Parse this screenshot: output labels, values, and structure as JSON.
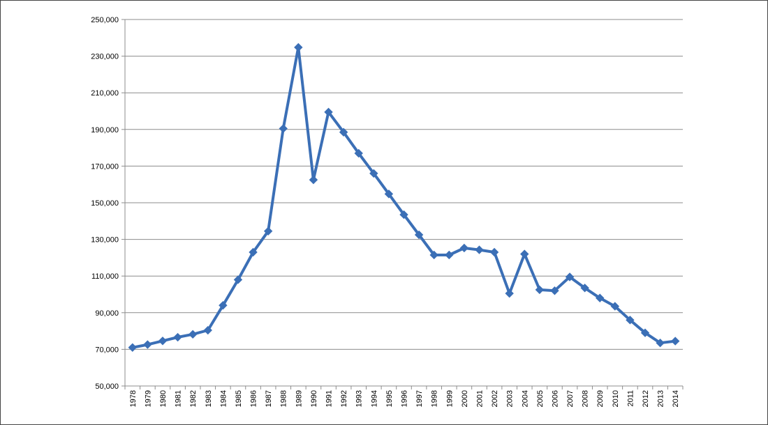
{
  "chart_data": {
    "type": "line",
    "title": "",
    "xlabel": "",
    "ylabel": "",
    "ylim": [
      50000,
      250000
    ],
    "y_ticks": [
      "50,000",
      "70,000",
      "90,000",
      "110,000",
      "130,000",
      "150,000",
      "170,000",
      "190,000",
      "210,000",
      "230,000",
      "250,000"
    ],
    "y_tick_values": [
      50000,
      70000,
      90000,
      110000,
      130000,
      150000,
      170000,
      190000,
      210000,
      230000,
      250000
    ],
    "grid": true,
    "legend": "none",
    "categories": [
      "1978",
      "1979",
      "1980",
      "1981",
      "1982",
      "1983",
      "1984",
      "1985",
      "1986",
      "1987",
      "1988",
      "1989",
      "1990",
      "1991",
      "1992",
      "1993",
      "1994",
      "1995",
      "1996",
      "1997",
      "1998",
      "1999",
      "2000",
      "2001",
      "2002",
      "2003",
      "2004",
      "2005",
      "2006",
      "2007",
      "2008",
      "2009",
      "2010",
      "2011",
      "2012",
      "2013",
      "2014"
    ],
    "series": [
      {
        "color": "#3b6fb6",
        "marker": "diamond",
        "values": [
          71000,
          72600,
          74600,
          76600,
          78200,
          80400,
          94000,
          108000,
          123000,
          134500,
          190500,
          234800,
          162500,
          199500,
          188500,
          177000,
          166000,
          154800,
          143500,
          132500,
          121500,
          121500,
          125300,
          124300,
          123000,
          100500,
          122000,
          102500,
          102000,
          109500,
          103500,
          98000,
          93500,
          86000,
          79000,
          73500,
          74500
        ]
      }
    ]
  }
}
